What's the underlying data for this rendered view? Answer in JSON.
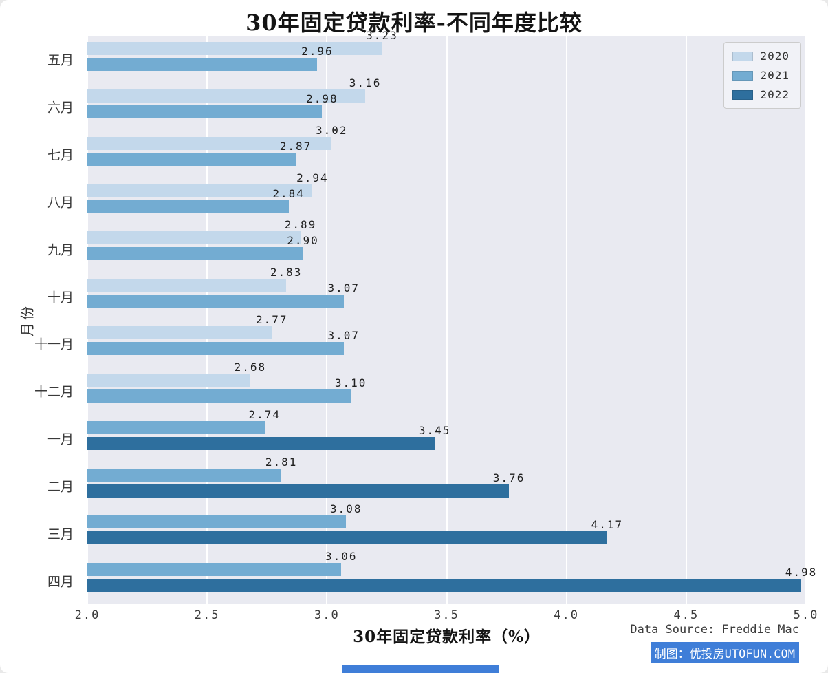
{
  "footer": {
    "source": "Data Source: Freddie Mac",
    "credit": "制图：优投房UTOFUN.COM"
  },
  "colors": {
    "plot_background": "#e9eaf1",
    "gridline": "#ffffff",
    "credit_highlight": "#3f7ed8",
    "credit_text": "#ffffff"
  },
  "legend": {
    "position": "top-right",
    "entries": [
      {
        "label": "2020",
        "color": "#c3d8eb"
      },
      {
        "label": "2021",
        "color": "#73acd2"
      },
      {
        "label": "2022",
        "color": "#2e6f9e"
      }
    ]
  },
  "chart_data": {
    "type": "bar",
    "orientation": "horizontal",
    "title": "30年固定贷款利率-不同年度比较",
    "xlabel": "30年固定贷款利率（%）",
    "ylabel": "月份",
    "xlim": [
      2.0,
      5.0
    ],
    "bar_start": 2.0,
    "grid": "vertical-white-on-gray",
    "xticks": [
      {
        "value": 2.0,
        "label": "2.0"
      },
      {
        "value": 2.5,
        "label": "2.5"
      },
      {
        "value": 3.0,
        "label": "3.0"
      },
      {
        "value": 3.5,
        "label": "3.5"
      },
      {
        "value": 4.0,
        "label": "4.0"
      },
      {
        "value": 4.5,
        "label": "4.5"
      },
      {
        "value": 5.0,
        "label": "5.0"
      }
    ],
    "categories": [
      "五月",
      "六月",
      "七月",
      "八月",
      "九月",
      "十月",
      "十一月",
      "十二月",
      "一月",
      "二月",
      "三月",
      "四月"
    ],
    "groups": [
      {
        "month": "五月",
        "bars": [
          {
            "series": "2020",
            "value": 3.23,
            "label": "3.23"
          },
          {
            "series": "2021",
            "value": 2.96,
            "label": "2.96"
          }
        ]
      },
      {
        "month": "六月",
        "bars": [
          {
            "series": "2020",
            "value": 3.16,
            "label": "3.16"
          },
          {
            "series": "2021",
            "value": 2.98,
            "label": "2.98"
          }
        ]
      },
      {
        "month": "七月",
        "bars": [
          {
            "series": "2020",
            "value": 3.02,
            "label": "3.02"
          },
          {
            "series": "2021",
            "value": 2.87,
            "label": "2.87"
          }
        ]
      },
      {
        "month": "八月",
        "bars": [
          {
            "series": "2020",
            "value": 2.94,
            "label": "2.94"
          },
          {
            "series": "2021",
            "value": 2.84,
            "label": "2.84"
          }
        ]
      },
      {
        "month": "九月",
        "bars": [
          {
            "series": "2020",
            "value": 2.89,
            "label": "2.89"
          },
          {
            "series": "2021",
            "value": 2.9,
            "label": "2.90"
          }
        ]
      },
      {
        "month": "十月",
        "bars": [
          {
            "series": "2020",
            "value": 2.83,
            "label": "2.83"
          },
          {
            "series": "2021",
            "value": 3.07,
            "label": "3.07"
          }
        ]
      },
      {
        "month": "十一月",
        "bars": [
          {
            "series": "2020",
            "value": 2.77,
            "label": "2.77"
          },
          {
            "series": "2021",
            "value": 3.07,
            "label": "3.07"
          }
        ]
      },
      {
        "month": "十二月",
        "bars": [
          {
            "series": "2020",
            "value": 2.68,
            "label": "2.68"
          },
          {
            "series": "2021",
            "value": 3.1,
            "label": "3.10"
          }
        ]
      },
      {
        "month": "一月",
        "bars": [
          {
            "series": "2021",
            "value": 2.74,
            "label": "2.74"
          },
          {
            "series": "2022",
            "value": 3.45,
            "label": "3.45"
          }
        ]
      },
      {
        "month": "二月",
        "bars": [
          {
            "series": "2021",
            "value": 2.81,
            "label": "2.81"
          },
          {
            "series": "2022",
            "value": 3.76,
            "label": "3.76"
          }
        ]
      },
      {
        "month": "三月",
        "bars": [
          {
            "series": "2021",
            "value": 3.08,
            "label": "3.08"
          },
          {
            "series": "2022",
            "value": 4.17,
            "label": "4.17"
          }
        ]
      },
      {
        "month": "四月",
        "bars": [
          {
            "series": "2021",
            "value": 3.06,
            "label": "3.06"
          },
          {
            "series": "2022",
            "value": 4.98,
            "label": "4.98"
          }
        ]
      }
    ]
  }
}
